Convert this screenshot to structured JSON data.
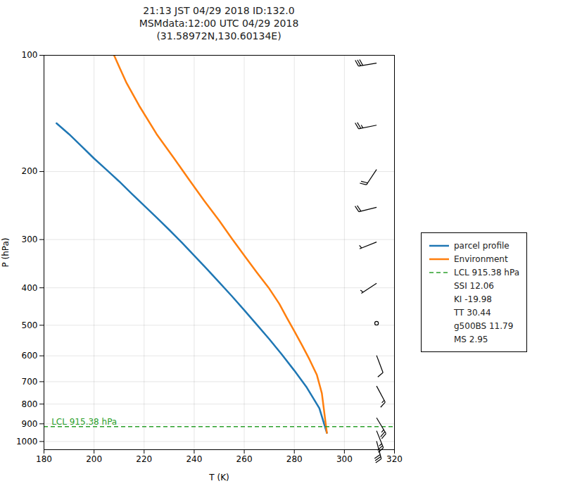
{
  "chart_data": {
    "type": "line",
    "title": "21:13 JST 04/29 2018  ID:132.0\nMSMdata:12:00 UTC 04/29 2018\n(31.58972N,130.60134E)",
    "xlabel": "T (K)",
    "ylabel": "P (hPa)",
    "xlim": [
      180,
      320
    ],
    "ylim": [
      1050,
      100
    ],
    "log": "y",
    "xticks": [
      180,
      200,
      220,
      240,
      260,
      280,
      300,
      320
    ],
    "yticks": [
      100,
      200,
      300,
      400,
      500,
      600,
      700,
      800,
      900,
      1000
    ],
    "grid": true,
    "legend": "right",
    "series": [
      {
        "name": "parcel profile",
        "color": "#1f77b4",
        "line_style": "solid",
        "x": [
          185,
          190,
          195,
          200,
          205,
          210,
          215,
          220,
          225,
          230,
          235,
          240,
          245,
          250,
          255,
          260,
          265,
          270,
          275,
          280,
          285,
          290,
          293
        ],
        "values": [
          150,
          160,
          172,
          185,
          198,
          212,
          228,
          245,
          263,
          283,
          305,
          330,
          357,
          387,
          420,
          457,
          498,
          543,
          595,
          655,
          725,
          820,
          950
        ]
      },
      {
        "name": "Environment",
        "color": "#ff7f0e",
        "line_style": "solid",
        "x": [
          208,
          210,
          213,
          218,
          225,
          232,
          238,
          244,
          250,
          255,
          260,
          265,
          270,
          274,
          277,
          280,
          283,
          286,
          289,
          291,
          293
        ],
        "values": [
          100,
          107,
          118,
          135,
          160,
          185,
          210,
          238,
          268,
          298,
          330,
          365,
          402,
          440,
          478,
          518,
          562,
          612,
          672,
          750,
          950
        ]
      }
    ],
    "lcl": {
      "name": "LCL 915.38 hPa",
      "value": 915.38,
      "color": "#2ca02c",
      "line_style": "dashed",
      "label": "LCL 915.38 hPa",
      "label_x": 183
    },
    "wind_barbs": {
      "x": 313,
      "pressure": [
        105,
        152,
        198,
        248,
        305,
        390,
        495,
        600,
        720,
        870,
        940,
        1000
      ],
      "u": [
        -30,
        -25,
        -10,
        -20,
        -5,
        -3,
        -2,
        3,
        8,
        12,
        10,
        8
      ],
      "v": [
        5,
        5,
        15,
        5,
        2,
        2,
        1,
        8,
        15,
        20,
        25,
        30
      ]
    },
    "stats_lines": [
      "SSI 12.06",
      "KI -19.98",
      "TT 30.44",
      "g500BS 11.79",
      "MS 2.95"
    ]
  }
}
